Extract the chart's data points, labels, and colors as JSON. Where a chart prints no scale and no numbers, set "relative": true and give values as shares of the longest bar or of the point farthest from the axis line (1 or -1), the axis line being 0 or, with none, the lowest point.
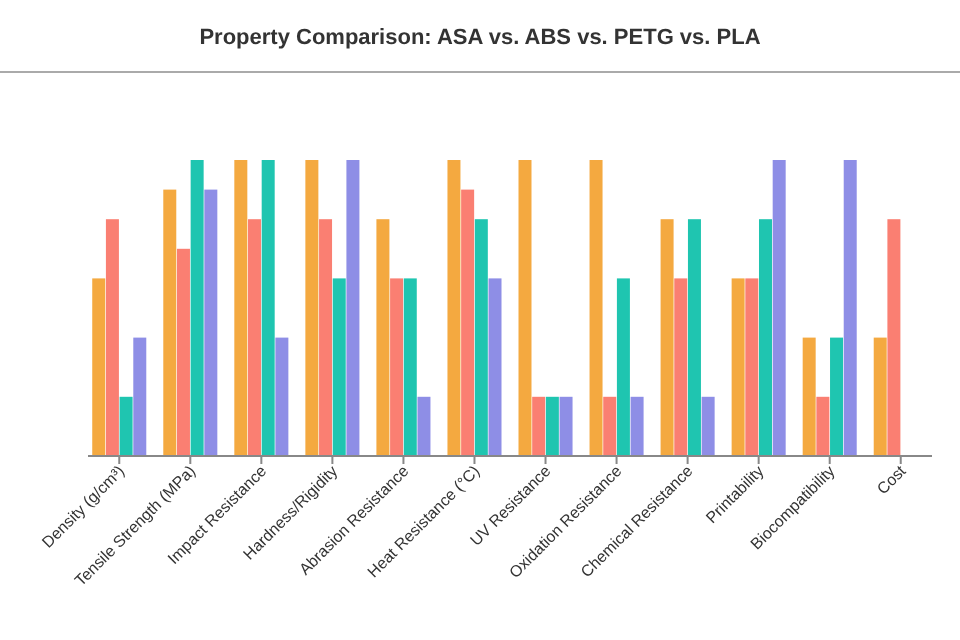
{
  "chart_data": {
    "type": "bar",
    "title": "Property Comparison: ASA vs. ABS vs. PETG vs. PLA",
    "relative": true,
    "categories": [
      "Density (g/cm³)",
      "Tensile Strength (MPa)",
      "Impact Resistance",
      "Hardness/Rigidity",
      "Abrasion Resistance",
      "Heat Resistance (°C)",
      "UV Resistance",
      "Oxidation Resistance",
      "Chemical Resistance",
      "Printability",
      "Biocompatibility",
      "Cost"
    ],
    "series": [
      {
        "color": "#f4a940",
        "values": [
          0.6,
          0.9,
          1,
          1,
          0.8,
          1,
          1,
          1,
          0.8,
          0.6,
          0.4,
          0.4
        ]
      },
      {
        "color": "#fa7f72",
        "values": [
          0.8,
          0.7,
          0.8,
          0.8,
          0.6,
          0.9,
          0.2,
          0.2,
          0.6,
          0.6,
          0.2,
          0.8
        ]
      },
      {
        "color": "#1fc5b0",
        "values": [
          0.2,
          1,
          1,
          0.6,
          0.6,
          0.8,
          0.2,
          0.6,
          0.8,
          0.8,
          0.4,
          null
        ]
      },
      {
        "color": "#8e8ee6",
        "values": [
          0.4,
          0.9,
          0.4,
          1,
          0.2,
          0.6,
          0.2,
          0.2,
          0.2,
          1,
          1,
          null
        ]
      }
    ]
  }
}
